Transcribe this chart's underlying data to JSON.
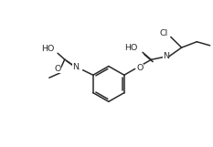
{
  "background_color": "#ffffff",
  "line_color": "#2a2a2a",
  "line_width": 1.1,
  "font_size": 6.8,
  "figsize": [
    2.33,
    1.61
  ],
  "dpi": 100,
  "xlim": [
    0,
    10
  ],
  "ylim": [
    0,
    7
  ]
}
